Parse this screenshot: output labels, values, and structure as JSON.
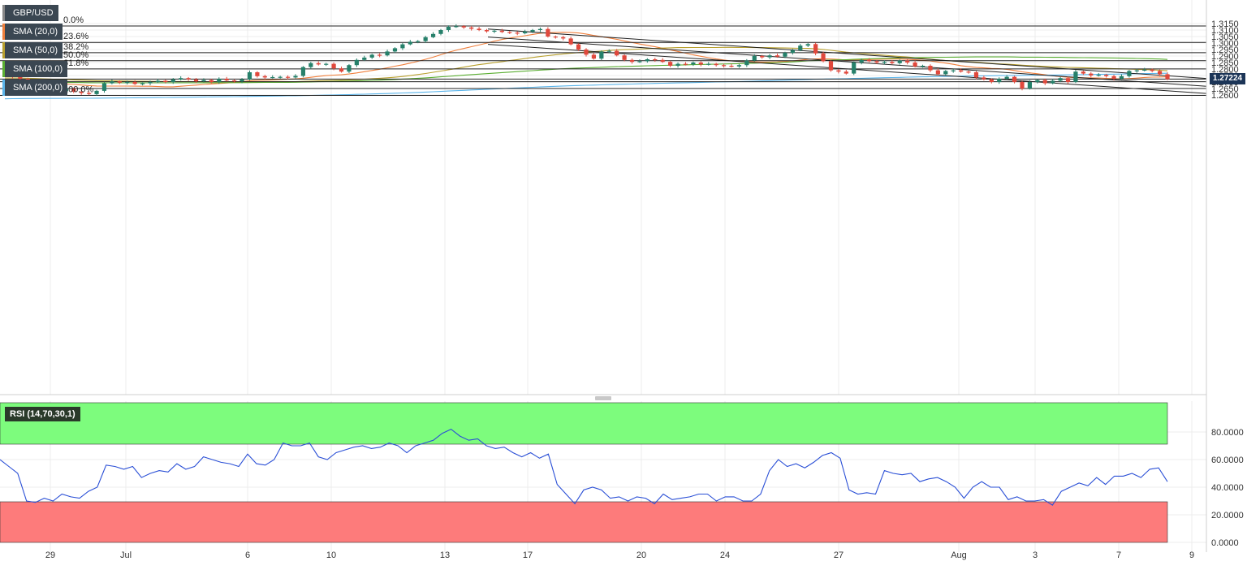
{
  "symbol": "GBP/USD",
  "indicators": [
    {
      "label": "SMA (20,0)",
      "color": "#f07f3c"
    },
    {
      "label": "SMA (50,0)",
      "color": "#b8a02e"
    },
    {
      "label": "SMA (100,0)",
      "color": "#5aae32"
    },
    {
      "label": "SMA (200,0)",
      "color": "#5ab4ea"
    }
  ],
  "last_price": "1.27224",
  "colors": {
    "up": "#26806a",
    "down": "#e0483c",
    "price_tag": "#1c3557"
  },
  "chart_data": [
    {
      "type": "candlestick",
      "yaxis_ticks": [
        "1.3150",
        "1.3100",
        "1.3050",
        "1.3000",
        "1.2950",
        "1.2900",
        "1.2850",
        "1.2800",
        "1.2750",
        "1.2700",
        "1.2650",
        "1.2600"
      ],
      "ylim": [
        1.2567,
        1.3167
      ],
      "xaxis_ticks": [
        "29",
        "Jul",
        "6",
        "10",
        "13",
        "17",
        "20",
        "24",
        "27",
        "Aug",
        "3",
        "7",
        "9"
      ],
      "fibonacci": [
        {
          "label": "0.0%",
          "level": 1.3131
        },
        {
          "label": "23.6%",
          "level": 1.3005
        },
        {
          "label": "38.2%",
          "level": 1.2926
        },
        {
          "label": "50.0%",
          "level": 1.2864
        },
        {
          "label": "61.8%",
          "level": 1.2801
        },
        {
          "label": "100.0%",
          "level": 1.2597
        }
      ],
      "horizontal_lines": [
        1.2702,
        1.265
      ],
      "last_value": 1.27224,
      "grid": true
    },
    {
      "type": "line",
      "title": "RSI (14,70,30,1)",
      "yaxis_ticks": [
        "80.0000",
        "60.0000",
        "40.0000",
        "20.0000",
        "0.0000"
      ],
      "ylim": [
        0,
        100
      ],
      "overbought": 70,
      "oversold": 30,
      "values": [
        60,
        55,
        50,
        30,
        29,
        32,
        30,
        35,
        33,
        32,
        37,
        40,
        56,
        55,
        53,
        55,
        47,
        50,
        52,
        51,
        57,
        53,
        55,
        62,
        60,
        58,
        57,
        55,
        64,
        57,
        56,
        60,
        72,
        70,
        70,
        72,
        62,
        60,
        65,
        67,
        69,
        70,
        68,
        69,
        72,
        70,
        65,
        70,
        72,
        74,
        79,
        82,
        77,
        74,
        75,
        70,
        68,
        69,
        65,
        62,
        65,
        61,
        64,
        42,
        35,
        28,
        38,
        40,
        38,
        32,
        33,
        30,
        33,
        32,
        28,
        35,
        31,
        32,
        33,
        35,
        35,
        30,
        33,
        33,
        30,
        30,
        35,
        52,
        60,
        55,
        57,
        54,
        58,
        63,
        65,
        61,
        38,
        35,
        36,
        35,
        52,
        50,
        49,
        50,
        44,
        46,
        47,
        44,
        40,
        32,
        40,
        44,
        40,
        40,
        31,
        33,
        30,
        30,
        31,
        27,
        37,
        40,
        43,
        41,
        47,
        42,
        48,
        48,
        50,
        47,
        53,
        54,
        44
      ]
    }
  ]
}
